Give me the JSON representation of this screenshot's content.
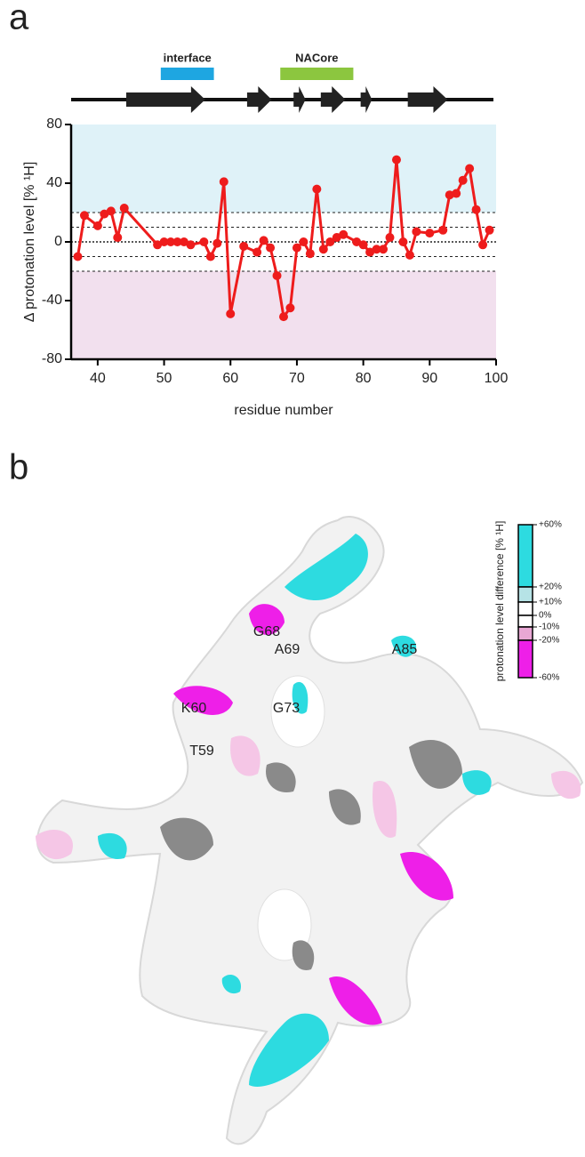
{
  "panel_labels": [
    "a",
    "b"
  ],
  "chart_data": {
    "type": "line",
    "xlabel": "residue number",
    "ylabel": "Δ protonation level [% ¹H]",
    "x": [
      37,
      38,
      40,
      41,
      42,
      43,
      44,
      49,
      50,
      51,
      52,
      53,
      54,
      56,
      57,
      58,
      59,
      60,
      62,
      64,
      65,
      66,
      67,
      68,
      69,
      70,
      71,
      72,
      73,
      74,
      75,
      76,
      77,
      79,
      80,
      81,
      82,
      83,
      84,
      85,
      86,
      87,
      88,
      90,
      92,
      93,
      94,
      95,
      96,
      97,
      98,
      99
    ],
    "values": [
      -10,
      18,
      11,
      19,
      21,
      3,
      23,
      -2,
      0,
      0,
      0,
      0,
      -2,
      0,
      -10,
      -1,
      41,
      -49,
      -3,
      -7,
      1,
      -4,
      -23,
      -51,
      -45,
      -4,
      0,
      -8,
      36,
      -5,
      0,
      3,
      5,
      0,
      -2,
      -7,
      -5,
      -5,
      3,
      56,
      0,
      -9,
      7,
      6,
      8,
      32,
      33,
      42,
      50,
      22,
      -2,
      8
    ],
    "color": "#ee1c1c",
    "xlim": [
      36,
      100
    ],
    "ylim": [
      -80,
      80
    ],
    "xticks": [
      40,
      50,
      60,
      70,
      80,
      90,
      100
    ],
    "yticks": [
      -80,
      -40,
      0,
      40,
      80
    ],
    "reference_lines": [
      20,
      10,
      0,
      -10,
      -20
    ],
    "bands": [
      {
        "from": 20,
        "to": 80,
        "color": "#dff2f8"
      },
      {
        "from": -80,
        "to": -20,
        "color": "#f2e0ee"
      }
    ],
    "regions": [
      {
        "label": "interface",
        "from": 49.5,
        "to": 57.5,
        "color": "#1ea6e1"
      },
      {
        "label": "NACore",
        "from": 67.5,
        "to": 78.5,
        "color": "#8cc63f"
      }
    ],
    "strands": [
      [
        44.3,
        56.2
      ],
      [
        62.5,
        66.2
      ],
      [
        69.5,
        71.3
      ],
      [
        73.6,
        77.3
      ],
      [
        79.6,
        81.3
      ],
      [
        86.7,
        92.7
      ]
    ]
  },
  "structure_panel": {
    "legend_title": "protonation level difference [% ¹H]",
    "legend_ticks": [
      "+60%",
      "+20%",
      "+10%",
      "0%",
      "-10%",
      "-20%",
      "-60%"
    ],
    "legend_colors": [
      "#2ddbe0",
      "#b6e3e6",
      "#ffffff",
      "#ffffff",
      "#e9a7d4",
      "#ee1fe8"
    ],
    "residue_labels": [
      "G68",
      "A69",
      "A85",
      "K60",
      "G73",
      "T59"
    ]
  }
}
